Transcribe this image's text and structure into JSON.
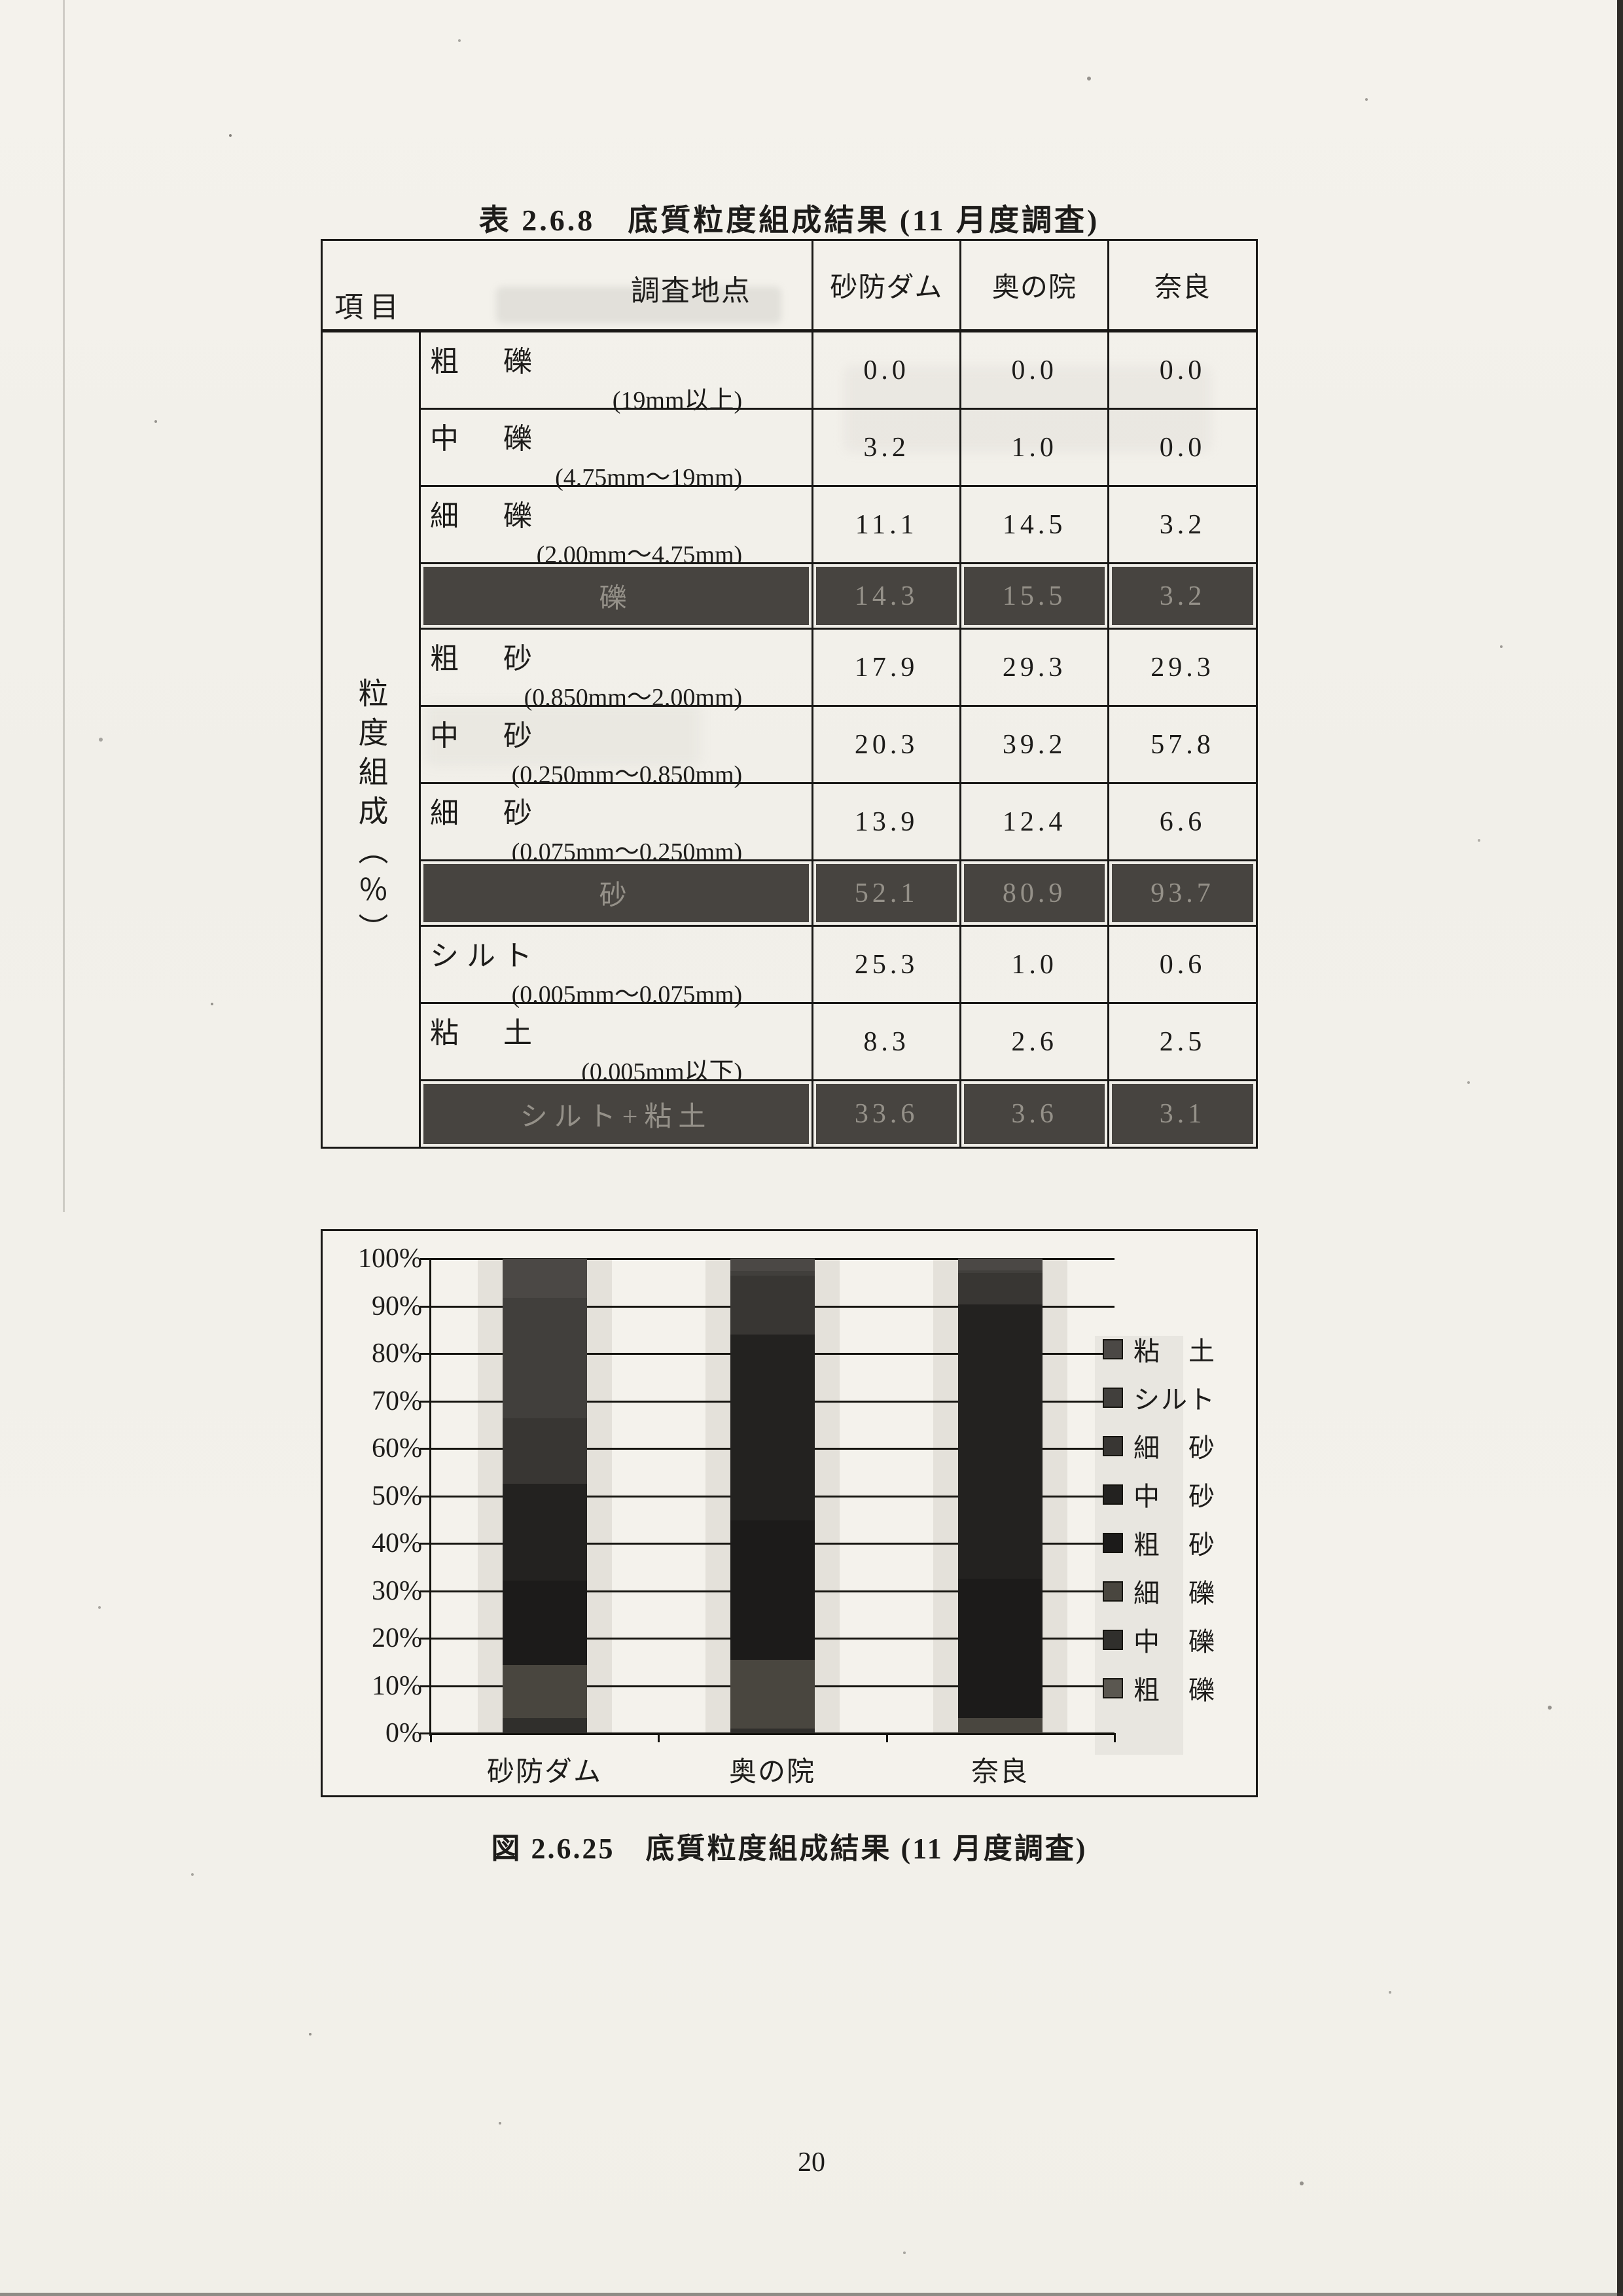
{
  "page": {
    "number": "20"
  },
  "table_section": {
    "title": "表 2.6.8　底質粒度組成結果 (11 月度調査)",
    "header": {
      "corner_top": "調査地点",
      "corner_bottom": "項目",
      "columns": [
        "砂防ダム",
        "奥の院",
        "奈良"
      ]
    },
    "row_group_label": "粒度組成（％）",
    "rows": [
      {
        "type": "item",
        "name": "粗　礫",
        "range": "(19mm以上)",
        "values": [
          "0.0",
          "0.0",
          "0.0"
        ]
      },
      {
        "type": "item",
        "name": "中　礫",
        "range": "(4.75mm〜19mm)",
        "values": [
          "3.2",
          "1.0",
          "0.0"
        ]
      },
      {
        "type": "item",
        "name": "細　礫",
        "range": "(2.00mm〜4.75mm)",
        "values": [
          "11.1",
          "14.5",
          "3.2"
        ]
      },
      {
        "type": "total",
        "name": "礫",
        "values": [
          "14.3",
          "15.5",
          "3.2"
        ]
      },
      {
        "type": "item",
        "name": "粗　砂",
        "range": "(0.850mm〜2.00mm)",
        "values": [
          "17.9",
          "29.3",
          "29.3"
        ]
      },
      {
        "type": "item",
        "name": "中　砂",
        "range": "(0.250mm〜0.850mm)",
        "values": [
          "20.3",
          "39.2",
          "57.8"
        ]
      },
      {
        "type": "item",
        "name": "細　砂",
        "range": "(0.075mm〜0.250mm)",
        "values": [
          "13.9",
          "12.4",
          "6.6"
        ]
      },
      {
        "type": "total",
        "name": "砂",
        "values": [
          "52.1",
          "80.9",
          "93.7"
        ]
      },
      {
        "type": "item",
        "name": "シルト",
        "range": "(0.005mm〜0.075mm)",
        "values": [
          "25.3",
          "1.0",
          "0.6"
        ]
      },
      {
        "type": "item",
        "name": "粘　土",
        "range": "(0.005mm以下)",
        "values": [
          "8.3",
          "2.6",
          "2.5"
        ]
      },
      {
        "type": "total",
        "name": "シルト+粘土",
        "values": [
          "33.6",
          "3.6",
          "3.1"
        ]
      }
    ]
  },
  "chart_section": {
    "caption": "図 2.6.25　底質粒度組成結果 (11 月度調査)"
  },
  "chart_data": {
    "type": "bar",
    "stacked": true,
    "title": "底質粒度組成結果 (11 月度調査)",
    "categories": [
      "砂防ダム",
      "奥の院",
      "奈良"
    ],
    "series": [
      {
        "name": "粘土",
        "label": "粘　土",
        "values": [
          8.3,
          2.6,
          2.5
        ],
        "color": "#4b4845"
      },
      {
        "name": "シルト",
        "label": "シルト",
        "values": [
          25.3,
          1.0,
          0.6
        ],
        "color": "#413f3c"
      },
      {
        "name": "細砂",
        "label": "細　砂",
        "values": [
          13.9,
          12.4,
          6.6
        ],
        "color": "#383633"
      },
      {
        "name": "中砂",
        "label": "中　砂",
        "values": [
          20.3,
          39.2,
          57.8
        ],
        "color": "#232220"
      },
      {
        "name": "粗砂",
        "label": "粗　砂",
        "values": [
          17.9,
          29.3,
          29.3
        ],
        "color": "#1c1b1a"
      },
      {
        "name": "細礫",
        "label": "細　礫",
        "values": [
          11.1,
          14.5,
          3.2
        ],
        "color": "#49463f"
      },
      {
        "name": "中礫",
        "label": "中　礫",
        "values": [
          3.2,
          1.0,
          0.0
        ],
        "color": "#302f2c"
      },
      {
        "name": "粗礫",
        "label": "粗　礫",
        "values": [
          0.0,
          0.0,
          0.0
        ],
        "color": "#5a5750"
      }
    ],
    "y_ticks": [
      "0%",
      "10%",
      "20%",
      "30%",
      "40%",
      "50%",
      "60%",
      "70%",
      "80%",
      "90%",
      "100%"
    ],
    "ylim": [
      0,
      100
    ],
    "grid": true,
    "legend_position": "right",
    "stack_order": "legend lists top-of-stack first; bars stack bottom-up in reverse series order (粗礫 at bottom)"
  }
}
